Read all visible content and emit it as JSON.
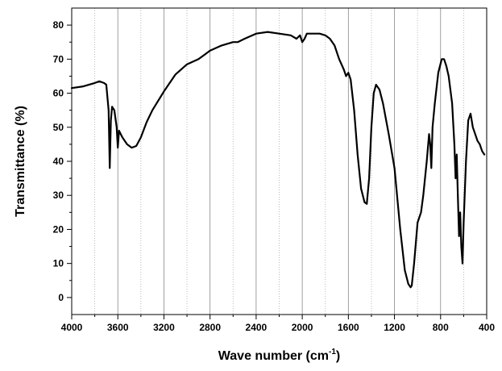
{
  "chart_data": {
    "type": "line",
    "title": "",
    "xlabel": "Wave number (cm",
    "xlabel_superscript": "-1",
    "xlabel_suffix": ")",
    "ylabel": "Transmittance (%)",
    "xlim": [
      4000,
      400
    ],
    "ylim": [
      -5,
      85
    ],
    "x_reversed": true,
    "grid": "vertical gridlines at every 200 cm-1; solid at labeled ticks, dotted between",
    "line_color": "#000000",
    "x_ticks": [
      4000,
      3600,
      3200,
      2800,
      2400,
      2000,
      1600,
      1200,
      800,
      400
    ],
    "x_tick_labels": [
      "4000",
      "3600",
      "3200",
      "2800",
      "2400",
      "2000",
      "1600",
      "1200",
      "800",
      "400"
    ],
    "y_ticks": [
      0,
      10,
      20,
      30,
      40,
      50,
      60,
      70,
      80
    ],
    "y_tick_labels": [
      "0",
      "10",
      "20",
      "30",
      "40",
      "50",
      "60",
      "70",
      "80"
    ],
    "series": [
      {
        "points": [
          [
            4000,
            61.5
          ],
          [
            3900,
            62
          ],
          [
            3800,
            63
          ],
          [
            3760,
            63.5
          ],
          [
            3720,
            63
          ],
          [
            3700,
            62.5
          ],
          [
            3680,
            55
          ],
          [
            3670,
            38
          ],
          [
            3660,
            52
          ],
          [
            3650,
            56
          ],
          [
            3630,
            55
          ],
          [
            3610,
            50
          ],
          [
            3600,
            44
          ],
          [
            3590,
            49
          ],
          [
            3560,
            47
          ],
          [
            3520,
            45
          ],
          [
            3480,
            44
          ],
          [
            3440,
            44.5
          ],
          [
            3400,
            47
          ],
          [
            3350,
            51.5
          ],
          [
            3300,
            55
          ],
          [
            3200,
            60.5
          ],
          [
            3100,
            65.5
          ],
          [
            3000,
            68.5
          ],
          [
            2900,
            70
          ],
          [
            2800,
            72.5
          ],
          [
            2700,
            74
          ],
          [
            2600,
            75
          ],
          [
            2560,
            75
          ],
          [
            2500,
            76
          ],
          [
            2400,
            77.5
          ],
          [
            2300,
            78
          ],
          [
            2200,
            77.5
          ],
          [
            2100,
            77
          ],
          [
            2050,
            76
          ],
          [
            2020,
            77
          ],
          [
            2000,
            75
          ],
          [
            1980,
            76
          ],
          [
            1960,
            77.5
          ],
          [
            1900,
            77.5
          ],
          [
            1850,
            77.5
          ],
          [
            1800,
            77
          ],
          [
            1760,
            76
          ],
          [
            1720,
            74
          ],
          [
            1680,
            70
          ],
          [
            1640,
            67
          ],
          [
            1620,
            65
          ],
          [
            1600,
            66
          ],
          [
            1580,
            64
          ],
          [
            1550,
            55
          ],
          [
            1520,
            42
          ],
          [
            1490,
            32
          ],
          [
            1460,
            28
          ],
          [
            1440,
            27.5
          ],
          [
            1420,
            35
          ],
          [
            1400,
            50
          ],
          [
            1380,
            60
          ],
          [
            1360,
            62.5
          ],
          [
            1330,
            61
          ],
          [
            1300,
            57
          ],
          [
            1250,
            48
          ],
          [
            1200,
            38
          ],
          [
            1150,
            20
          ],
          [
            1110,
            8
          ],
          [
            1080,
            4
          ],
          [
            1060,
            3
          ],
          [
            1050,
            3.5
          ],
          [
            1030,
            10
          ],
          [
            1000,
            22
          ],
          [
            970,
            25
          ],
          [
            950,
            30
          ],
          [
            920,
            40
          ],
          [
            900,
            48
          ],
          [
            890,
            45
          ],
          [
            880,
            38
          ],
          [
            870,
            50
          ],
          [
            850,
            57
          ],
          [
            820,
            66
          ],
          [
            790,
            70
          ],
          [
            770,
            70
          ],
          [
            750,
            68
          ],
          [
            730,
            65
          ],
          [
            700,
            57
          ],
          [
            680,
            45
          ],
          [
            670,
            35
          ],
          [
            660,
            42
          ],
          [
            650,
            30
          ],
          [
            640,
            18
          ],
          [
            630,
            25
          ],
          [
            620,
            15
          ],
          [
            610,
            10
          ],
          [
            600,
            22
          ],
          [
            580,
            40
          ],
          [
            560,
            52
          ],
          [
            540,
            54
          ],
          [
            520,
            50
          ],
          [
            500,
            48
          ],
          [
            480,
            46
          ],
          [
            460,
            45
          ],
          [
            440,
            43
          ],
          [
            420,
            42
          ]
        ]
      }
    ]
  }
}
